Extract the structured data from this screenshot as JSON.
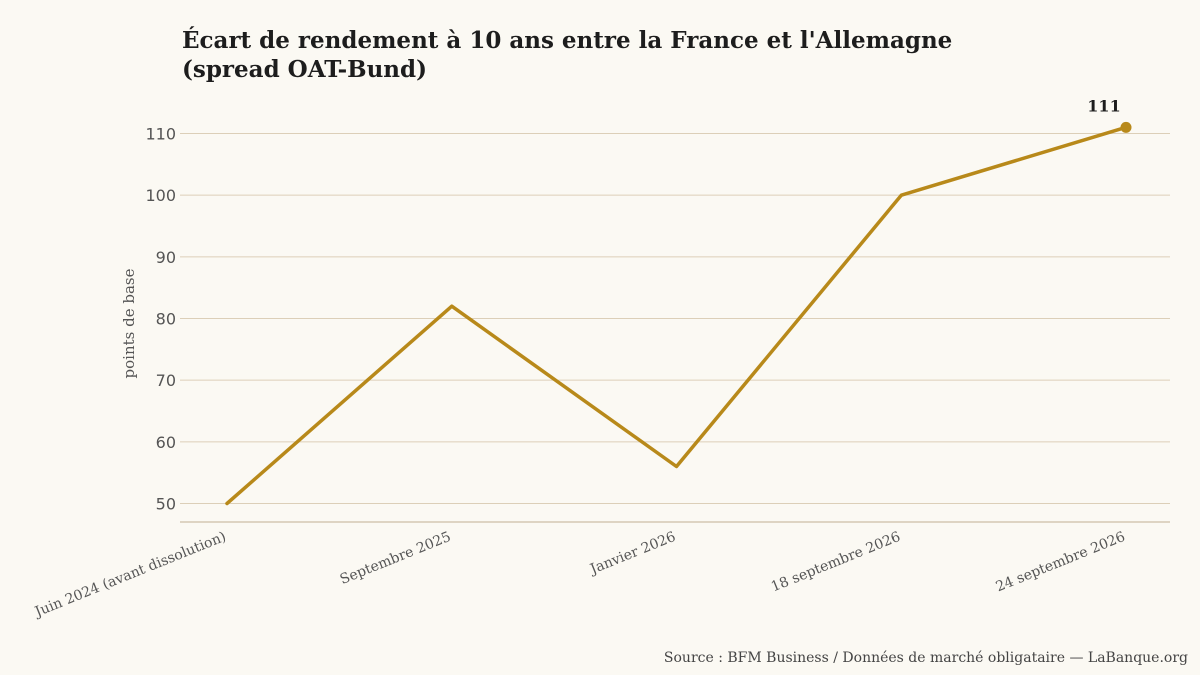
{
  "chart_data": {
    "type": "line",
    "title": "Écart de rendement à 10 ans entre la France et l'Allemagne",
    "subtitle": "(spread OAT-Bund)",
    "xlabel": "",
    "ylabel": "points de base",
    "categories": [
      "Juin 2024 (avant dissolution)",
      "Septembre 2025",
      "Janvier 2026",
      "18 septembre 2026",
      "24 septembre 2026"
    ],
    "series": [
      {
        "values": [
          50,
          82,
          56,
          100,
          111
        ]
      }
    ],
    "yticks": [
      50,
      60,
      70,
      80,
      90,
      100,
      110
    ],
    "ylim": [
      47,
      113
    ],
    "grid": true,
    "legend": "none",
    "highlight": {
      "index": 4,
      "label": "111"
    },
    "colors": {
      "line": "#b8891a",
      "grid": "#dccfb8",
      "axis": "#cdbfa6",
      "background": "#fbf9f3"
    },
    "source": "Source : BFM Business / Données de marché obligataire — LaBanque.org"
  }
}
